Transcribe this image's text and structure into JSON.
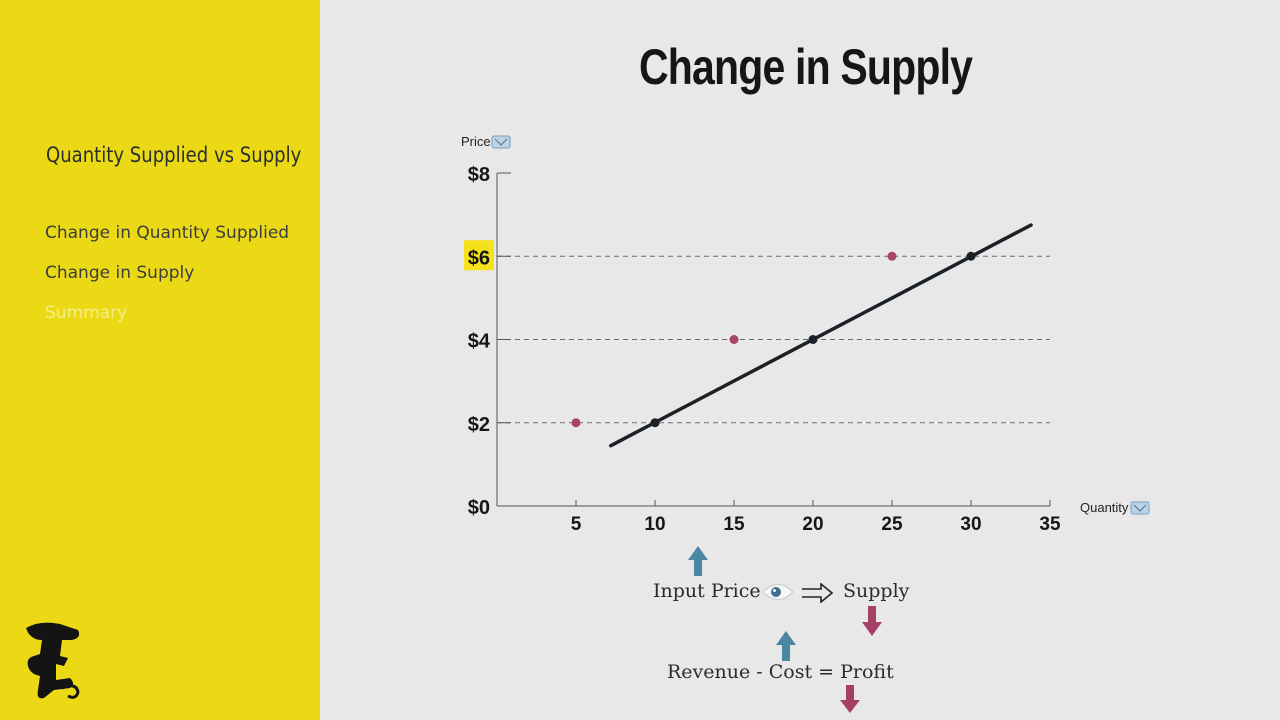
{
  "sidebar": {
    "heading": "Quantity Supplied vs Supply",
    "items": [
      {
        "label": "Change in Quantity Supplied",
        "state": "active"
      },
      {
        "label": "Change in Supply",
        "state": "active"
      },
      {
        "label": "Summary",
        "state": "dim"
      }
    ]
  },
  "slide": {
    "title": "Change in Supply"
  },
  "chart_data": {
    "type": "line",
    "ylabel": "Price",
    "xlabel": "Quantity",
    "x_ticks": [
      "5",
      "10",
      "15",
      "20",
      "25",
      "30",
      "35"
    ],
    "y_ticks": [
      "$0",
      "$2",
      "$4",
      "$6",
      "$8"
    ],
    "highlighted_tick": "$6",
    "xlim": [
      0,
      35
    ],
    "ylim": [
      0,
      8
    ],
    "dashed_gridlines_at": [
      2,
      4,
      6
    ],
    "supply_line": {
      "x": [
        7.2,
        33.8
      ],
      "y": [
        1.45,
        6.75
      ]
    },
    "series": [
      {
        "points": [
          {
            "x": 10,
            "y": 2
          },
          {
            "x": 20,
            "y": 4
          },
          {
            "x": 30,
            "y": 6
          }
        ],
        "color": "#1b2126"
      },
      {
        "points": [
          {
            "x": 5,
            "y": 2
          },
          {
            "x": 15,
            "y": 4
          },
          {
            "x": 25,
            "y": 6
          }
        ],
        "color": "#a8436c"
      }
    ]
  },
  "formula": {
    "input_price": "Input Price",
    "supply": "Supply",
    "equation": "Revenue - Cost = Profit"
  },
  "colors": {
    "up_arrow": "#4b87a3",
    "down_arrow": "#a43f66",
    "sidebar_bg": "#ecd916",
    "highlight": "#f5e21a"
  }
}
